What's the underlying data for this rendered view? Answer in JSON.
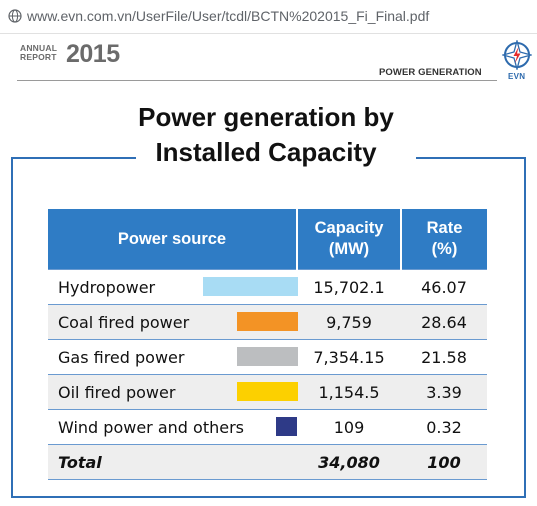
{
  "browser": {
    "url": "www.evn.com.vn/UserFile/User/tcdl/BCTN%202015_Fi_Final.pdf"
  },
  "report": {
    "label_line1": "ANNUAL",
    "label_line2": "REPORT",
    "year": "2015",
    "section": "POWER GENERATION",
    "logo_text": "EVN"
  },
  "title": {
    "line1": "Power generation by",
    "line2": "Installed Capacity"
  },
  "table": {
    "headers": {
      "source": "Power source",
      "capacity_line1": "Capacity",
      "capacity_line2": "(MW)",
      "rate_line1": "Rate",
      "rate_line2": "(%)"
    },
    "rows": [
      {
        "source": "Hydropower",
        "capacity": "15,702.1",
        "rate": "46.07",
        "color": "#a8dcf4"
      },
      {
        "source": "Coal fired power",
        "capacity": "9,759",
        "rate": "28.64",
        "color": "#f39325"
      },
      {
        "source": "Gas fired power",
        "capacity": "7,354.15",
        "rate": "21.58",
        "color": "#bcbec0"
      },
      {
        "source": "Oil fired power",
        "capacity": "1,154.5",
        "rate": "3.39",
        "color": "#fcd000"
      },
      {
        "source": "Wind power and others",
        "capacity": "109",
        "rate": "0.32",
        "color": "#2e3a87"
      }
    ],
    "total": {
      "label": "Total",
      "capacity": "34,080",
      "rate": "100"
    }
  }
}
